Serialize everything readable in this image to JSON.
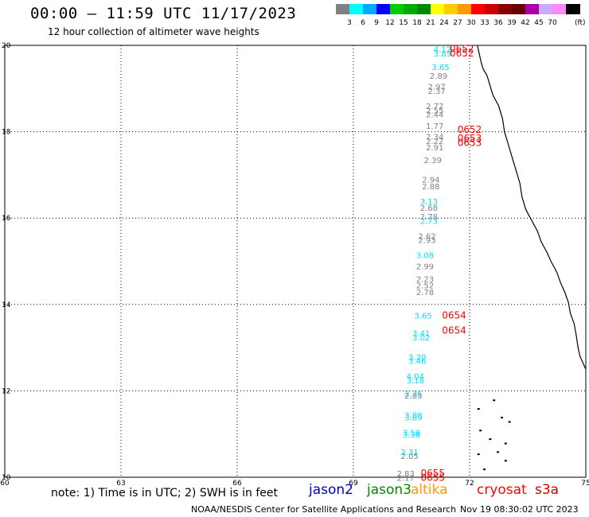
{
  "header": {
    "title": "00:00 – 11:59 UTC 11/17/2023",
    "subtitle": "12 hour collection of altimeter wave heights"
  },
  "color_scale": {
    "unit": "(ft)",
    "colors": [
      "#808080",
      "#00ffff",
      "#00aaff",
      "#0000ff",
      "#00cc00",
      "#00aa00",
      "#008800",
      "#ffff00",
      "#ffcc00",
      "#ff9900",
      "#ff0000",
      "#cc0000",
      "#880000",
      "#660000",
      "#aa00aa",
      "#ccaaff",
      "#ff88ff",
      "#000000"
    ],
    "labels": [
      "3",
      "6",
      "9",
      "12",
      "15",
      "18",
      "21",
      "24",
      "27",
      "30",
      "33",
      "36",
      "39",
      "42",
      "45",
      "70"
    ]
  },
  "axes": {
    "x_ticks": [
      "60",
      "63",
      "66",
      "69",
      "72",
      "75"
    ],
    "y_ticks": [
      "20",
      "18",
      "16",
      "14",
      "12",
      "10"
    ]
  },
  "chart_data": {
    "type": "map",
    "xlim": [
      60,
      75
    ],
    "ylim": [
      10,
      20
    ],
    "grid": true,
    "swh_points": [
      {
        "lon": 71.3,
        "lat": 19.84,
        "value": "4.12",
        "color": "#00e0ff"
      },
      {
        "lon": 71.3,
        "lat": 19.74,
        "value": "3.85",
        "color": "#00e0ff"
      },
      {
        "lon": 71.25,
        "lat": 19.43,
        "value": "3.65",
        "color": "#00e0ff"
      },
      {
        "lon": 71.2,
        "lat": 19.23,
        "value": "2.89",
        "color": "#808080"
      },
      {
        "lon": 71.15,
        "lat": 18.98,
        "value": "2.97",
        "color": "#808080"
      },
      {
        "lon": 71.15,
        "lat": 18.88,
        "value": "2.37",
        "color": "#808080"
      },
      {
        "lon": 71.1,
        "lat": 18.53,
        "value": "2.72",
        "color": "#808080"
      },
      {
        "lon": 71.1,
        "lat": 18.43,
        "value": "2.55",
        "color": "#808080"
      },
      {
        "lon": 71.1,
        "lat": 18.33,
        "value": "2.44",
        "color": "#808080"
      },
      {
        "lon": 71.1,
        "lat": 18.07,
        "value": "1.77",
        "color": "#808080"
      },
      {
        "lon": 71.1,
        "lat": 17.82,
        "value": "2.34",
        "color": "#808080"
      },
      {
        "lon": 71.1,
        "lat": 17.72,
        "value": "2.22",
        "color": "#808080"
      },
      {
        "lon": 71.1,
        "lat": 17.57,
        "value": "2.91",
        "color": "#808080"
      },
      {
        "lon": 71.05,
        "lat": 17.27,
        "value": "2.39",
        "color": "#808080"
      },
      {
        "lon": 71.0,
        "lat": 16.82,
        "value": "2.94",
        "color": "#808080"
      },
      {
        "lon": 71.0,
        "lat": 16.67,
        "value": "2.88",
        "color": "#808080"
      },
      {
        "lon": 70.95,
        "lat": 16.32,
        "value": "3.13",
        "color": "#00e0ff"
      },
      {
        "lon": 70.95,
        "lat": 16.17,
        "value": "2.68",
        "color": "#808080"
      },
      {
        "lon": 70.95,
        "lat": 15.97,
        "value": "2.78",
        "color": "#808080"
      },
      {
        "lon": 70.95,
        "lat": 15.87,
        "value": "2.73",
        "color": "#00e0ff"
      },
      {
        "lon": 70.9,
        "lat": 15.52,
        "value": "2.62",
        "color": "#808080"
      },
      {
        "lon": 70.9,
        "lat": 15.42,
        "value": "2.93",
        "color": "#808080"
      },
      {
        "lon": 70.85,
        "lat": 15.07,
        "value": "3.08",
        "color": "#00e0ff"
      },
      {
        "lon": 70.85,
        "lat": 14.82,
        "value": "2.99",
        "color": "#808080"
      },
      {
        "lon": 70.85,
        "lat": 14.52,
        "value": "2.23",
        "color": "#808080"
      },
      {
        "lon": 70.85,
        "lat": 14.37,
        "value": "2.52",
        "color": "#808080"
      },
      {
        "lon": 70.85,
        "lat": 14.22,
        "value": "2.78",
        "color": "#808080"
      },
      {
        "lon": 70.8,
        "lat": 13.67,
        "value": "3.65",
        "color": "#00e0ff"
      },
      {
        "lon": 70.75,
        "lat": 13.27,
        "value": "3.41",
        "color": "#00e0ff"
      },
      {
        "lon": 70.75,
        "lat": 13.17,
        "value": "3.02",
        "color": "#00e0ff"
      },
      {
        "lon": 70.65,
        "lat": 12.72,
        "value": "3.20",
        "color": "#00e0ff"
      },
      {
        "lon": 70.65,
        "lat": 12.62,
        "value": "3.46",
        "color": "#00e0ff"
      },
      {
        "lon": 70.6,
        "lat": 12.27,
        "value": "4.04",
        "color": "#00e0ff"
      },
      {
        "lon": 70.6,
        "lat": 12.17,
        "value": "3.18",
        "color": "#00e0ff"
      },
      {
        "lon": 70.55,
        "lat": 11.87,
        "value": "2.35",
        "color": "#00e0ff"
      },
      {
        "lon": 70.55,
        "lat": 11.82,
        "value": "2.85",
        "color": "#808080"
      },
      {
        "lon": 70.55,
        "lat": 11.37,
        "value": "3.88",
        "color": "#00e0ff"
      },
      {
        "lon": 70.55,
        "lat": 11.32,
        "value": "3.89",
        "color": "#00e0ff"
      },
      {
        "lon": 70.5,
        "lat": 10.97,
        "value": "3.59",
        "color": "#00e0ff"
      },
      {
        "lon": 70.5,
        "lat": 10.92,
        "value": "3.36",
        "color": "#00e0ff"
      },
      {
        "lon": 70.45,
        "lat": 10.52,
        "value": "3.31",
        "color": "#00e0ff"
      },
      {
        "lon": 70.45,
        "lat": 10.42,
        "value": "2.05",
        "color": "#808080"
      },
      {
        "lon": 70.35,
        "lat": 10.02,
        "value": "2.83",
        "color": "#808080"
      },
      {
        "lon": 70.35,
        "lat": 9.92,
        "value": "2.17",
        "color": "#808080"
      }
    ],
    "time_labels": [
      {
        "lon": 71.8,
        "lat": 19.84,
        "value": "0652",
        "color": "#ff0000"
      },
      {
        "lon": 71.8,
        "lat": 19.74,
        "value": "0652",
        "color": "#ff0000"
      },
      {
        "lon": 72.0,
        "lat": 17.97,
        "value": "0652",
        "color": "#ff0000"
      },
      {
        "lon": 72.0,
        "lat": 17.77,
        "value": "0653",
        "color": "#ff0000"
      },
      {
        "lon": 72.0,
        "lat": 17.67,
        "value": "0653",
        "color": "#ff0000"
      },
      {
        "lon": 71.6,
        "lat": 13.67,
        "value": "0654",
        "color": "#ff0000"
      },
      {
        "lon": 71.6,
        "lat": 13.32,
        "value": "0654",
        "color": "#ff0000"
      },
      {
        "lon": 71.05,
        "lat": 10.02,
        "value": "0655",
        "color": "#ff0000"
      },
      {
        "lon": 71.05,
        "lat": 9.92,
        "value": "0655",
        "color": "#ff0000"
      }
    ]
  },
  "footer": {
    "note": "note:  1) Time is in UTC;  2) SWH is in feet",
    "satellites": [
      {
        "name": "jason2",
        "color": "#0000cc"
      },
      {
        "name": "jason3",
        "color": "#008800"
      },
      {
        "name": "altika",
        "color": "#ff9900"
      },
      {
        "name": "cryosat",
        "color": "#ff0000"
      },
      {
        "name": "s3a",
        "color": "#cc0000"
      }
    ],
    "credit": "NOAA/NESDIS Center for Satellite Applications and Research",
    "timestamp": "Nov 19 08:30:02 UTC 2023"
  }
}
